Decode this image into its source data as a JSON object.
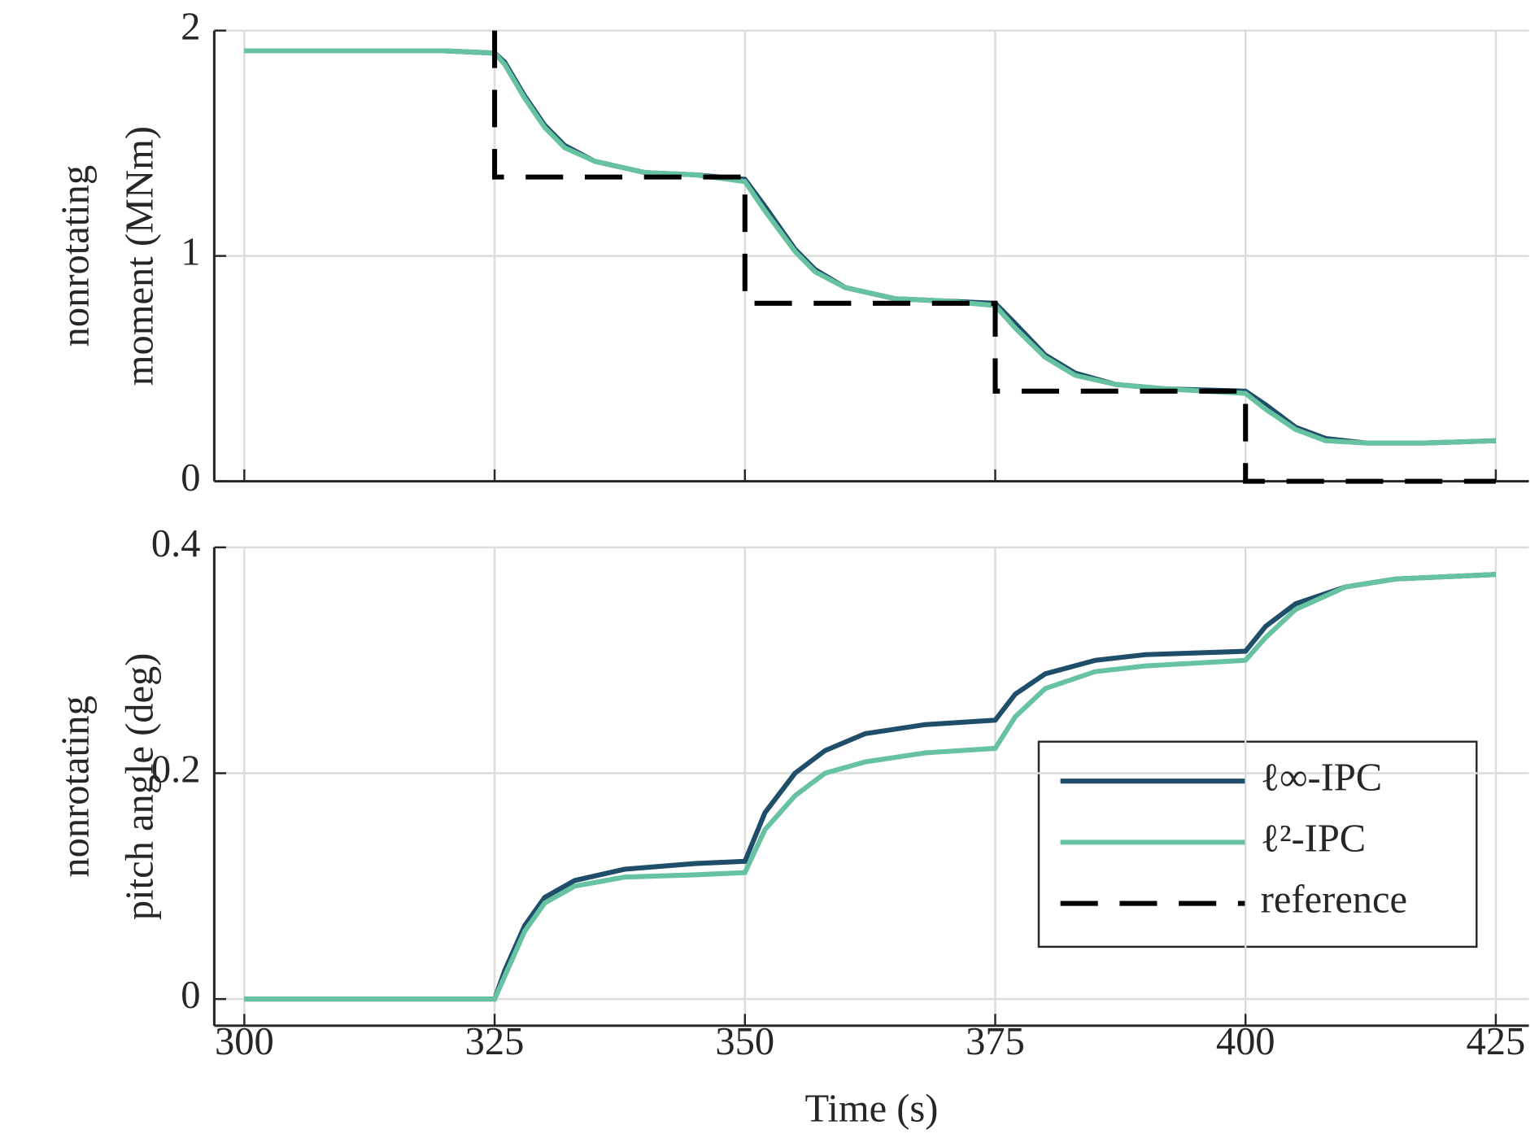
{
  "chart_data": [
    {
      "type": "line",
      "y_label": [
        "nonrotating",
        "moment (MNm)"
      ],
      "xlim": [
        297,
        428.3
      ],
      "xticks": [
        300,
        325,
        350,
        375,
        400,
        425
      ],
      "ylim": [
        0,
        2
      ],
      "yticks": [
        0,
        1,
        2
      ],
      "grid": true,
      "series": [
        {
          "name": "ℓ∞-IPC",
          "color": "#1f4e6b",
          "dash": false,
          "x": [
            300,
            310,
            320,
            325,
            326,
            328,
            330,
            332,
            335,
            340,
            345,
            350,
            352,
            355,
            357,
            360,
            365,
            370,
            375,
            377,
            380,
            383,
            387,
            392,
            400,
            402,
            405,
            408,
            412,
            418,
            425
          ],
          "values": [
            1.91,
            1.91,
            1.91,
            1.9,
            1.86,
            1.71,
            1.58,
            1.49,
            1.42,
            1.37,
            1.36,
            1.34,
            1.22,
            1.03,
            0.94,
            0.86,
            0.81,
            0.8,
            0.79,
            0.7,
            0.56,
            0.48,
            0.43,
            0.41,
            0.4,
            0.34,
            0.24,
            0.19,
            0.17,
            0.17,
            0.18
          ]
        },
        {
          "name": "ℓ²-IPC",
          "color": "#66c2a0",
          "dash": false,
          "x": [
            300,
            310,
            320,
            325,
            326,
            328,
            330,
            332,
            335,
            340,
            345,
            350,
            352,
            355,
            357,
            360,
            365,
            370,
            375,
            377,
            380,
            383,
            387,
            392,
            400,
            402,
            405,
            408,
            412,
            418,
            425
          ],
          "values": [
            1.91,
            1.91,
            1.91,
            1.9,
            1.85,
            1.7,
            1.57,
            1.48,
            1.42,
            1.37,
            1.36,
            1.33,
            1.2,
            1.02,
            0.93,
            0.86,
            0.81,
            0.8,
            0.78,
            0.68,
            0.55,
            0.47,
            0.43,
            0.41,
            0.39,
            0.32,
            0.23,
            0.18,
            0.17,
            0.17,
            0.18
          ]
        },
        {
          "name": "reference",
          "color": "#000000",
          "dash": true,
          "x": [
            325,
            325,
            350,
            350,
            375,
            375,
            400,
            400,
            425
          ],
          "values": [
            2,
            1.35,
            1.35,
            0.79,
            0.79,
            0.4,
            0.4,
            0,
            0
          ]
        }
      ]
    },
    {
      "type": "line",
      "x_label": "Time (s)",
      "y_label": [
        "nonrotating",
        "pitch angle (deg)"
      ],
      "xlim": [
        297,
        428.3
      ],
      "xticks": [
        300,
        325,
        350,
        375,
        400,
        425
      ],
      "ylim": [
        -0.0236,
        0.4
      ],
      "yticks": [
        0,
        0.2,
        0.4
      ],
      "grid": true,
      "series": [
        {
          "name": "ℓ∞-IPC",
          "color": "#1f4e6b",
          "dash": false,
          "x": [
            300,
            325,
            326,
            328,
            330,
            333,
            338,
            345,
            350,
            352,
            355,
            358,
            362,
            368,
            375,
            377,
            380,
            385,
            390,
            400,
            402,
            405,
            410,
            415,
            425
          ],
          "values": [
            0,
            0,
            0.025,
            0.065,
            0.09,
            0.105,
            0.115,
            0.12,
            0.122,
            0.165,
            0.2,
            0.22,
            0.235,
            0.243,
            0.247,
            0.27,
            0.288,
            0.3,
            0.305,
            0.308,
            0.33,
            0.35,
            0.365,
            0.372,
            0.376
          ]
        },
        {
          "name": "ℓ²-IPC",
          "color": "#66c2a0",
          "dash": false,
          "x": [
            300,
            325,
            326,
            328,
            330,
            333,
            338,
            345,
            350,
            352,
            355,
            358,
            362,
            368,
            375,
            377,
            380,
            385,
            390,
            400,
            402,
            405,
            410,
            415,
            425
          ],
          "values": [
            0,
            0,
            0.02,
            0.06,
            0.085,
            0.1,
            0.108,
            0.11,
            0.112,
            0.15,
            0.18,
            0.2,
            0.21,
            0.218,
            0.222,
            0.25,
            0.275,
            0.29,
            0.295,
            0.3,
            0.32,
            0.345,
            0.365,
            0.372,
            0.376
          ]
        }
      ]
    }
  ]
}
